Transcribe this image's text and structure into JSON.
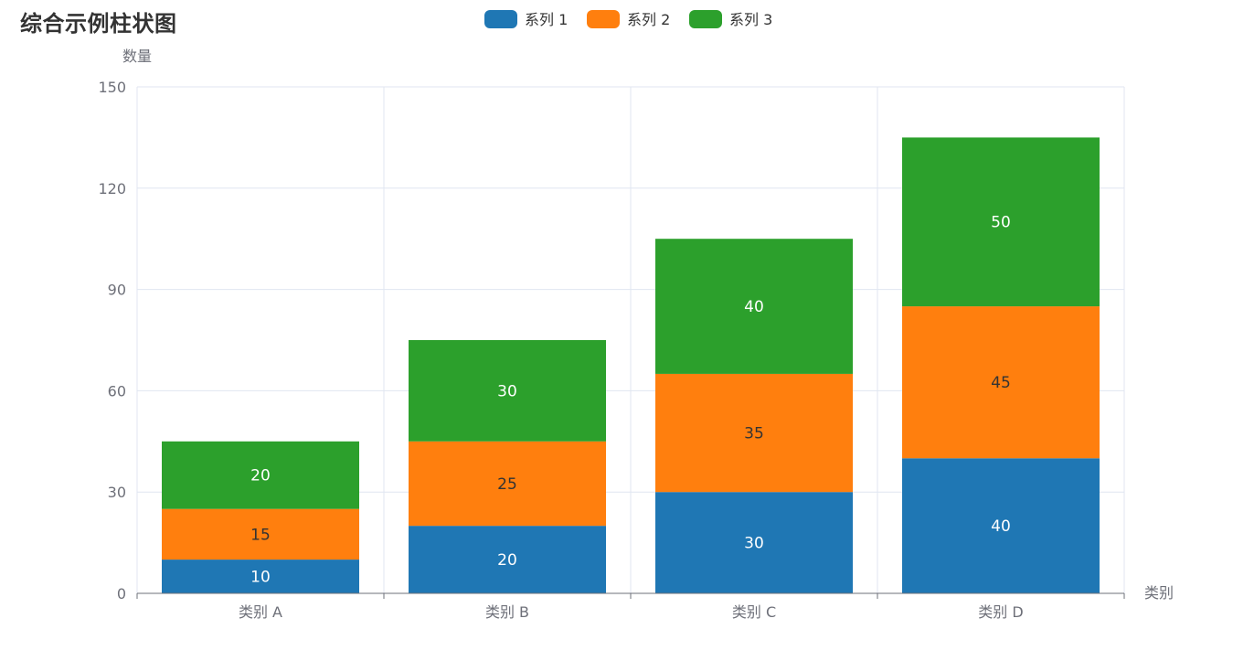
{
  "chart_data": {
    "type": "bar",
    "stacked": true,
    "title": "综合示例柱状图",
    "xlabel": "类别",
    "ylabel": "数量",
    "categories": [
      "类别 A",
      "类别 B",
      "类别 C",
      "类别 D"
    ],
    "ylim": [
      0,
      150
    ],
    "yticks": [
      0,
      30,
      60,
      90,
      120,
      150
    ],
    "grid": true,
    "legend_position": "top-center",
    "series": [
      {
        "name": "系列 1",
        "color": "#1f77b4",
        "label_color": "#ffffff",
        "values": [
          10,
          20,
          30,
          40
        ]
      },
      {
        "name": "系列 2",
        "color": "#ff7f0e",
        "label_color": "#333333",
        "values": [
          15,
          25,
          35,
          45
        ]
      },
      {
        "name": "系列 3",
        "color": "#2ca02c",
        "label_color": "#ffffff",
        "values": [
          20,
          30,
          40,
          50
        ]
      }
    ]
  }
}
